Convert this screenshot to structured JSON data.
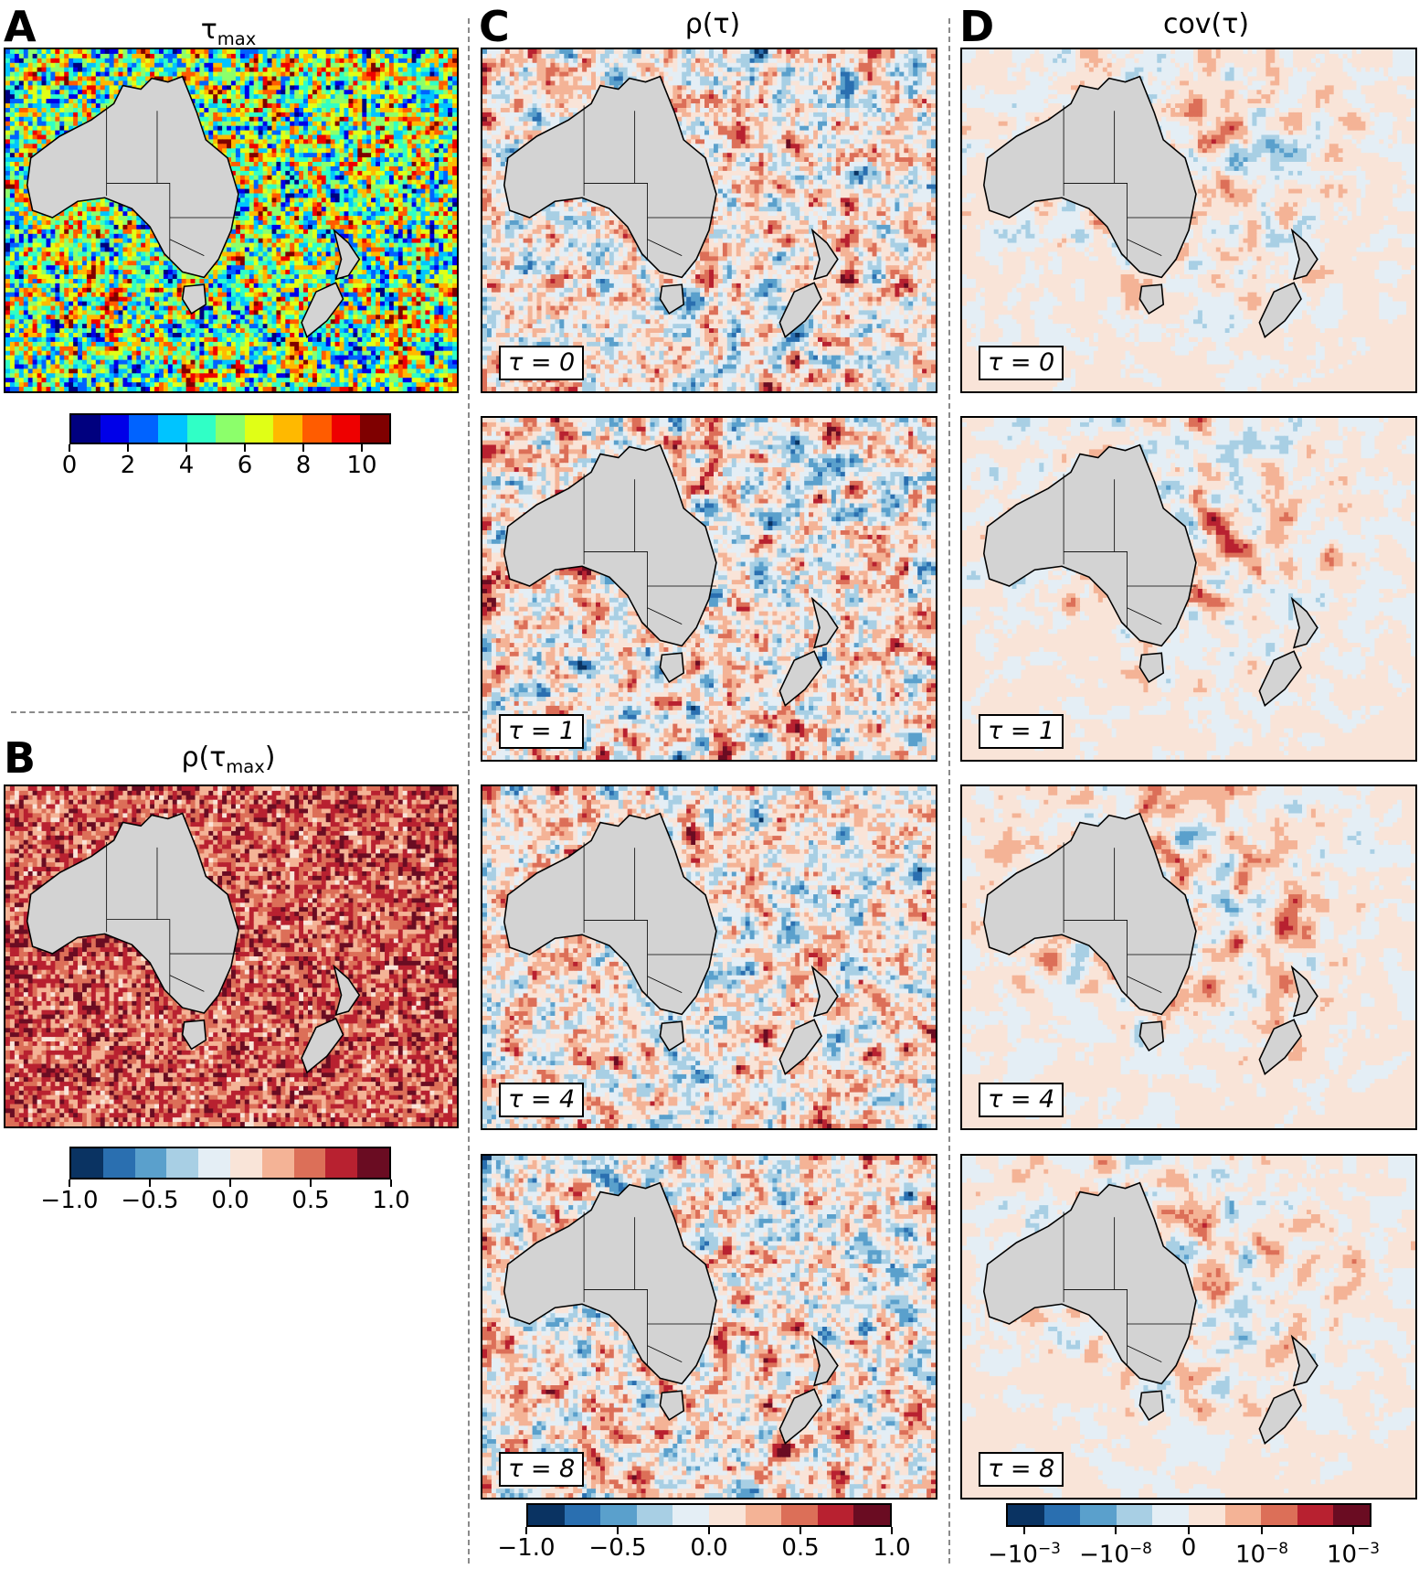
{
  "panels": {
    "A": {
      "letter": "A",
      "title_main": "τ",
      "title_sub": "max"
    },
    "B": {
      "letter": "B",
      "title_main": "ρ(τ",
      "title_sub": "max",
      "title_tail": ")"
    },
    "C": {
      "letter": "C",
      "title": "ρ(τ)"
    },
    "D": {
      "letter": "D",
      "title": "cov(τ)"
    }
  },
  "tau_rows": [
    "τ = 0",
    "τ = 1",
    "τ = 4",
    "τ = 8"
  ],
  "colorbars": {
    "tau_max": {
      "colors": [
        "#00007f",
        "#0000e8",
        "#0063ff",
        "#00c4ff",
        "#30ffc6",
        "#8cff6b",
        "#e0ff16",
        "#ffb900",
        "#ff5c00",
        "#ee0000",
        "#7f0000"
      ],
      "ticks": [
        "0",
        "2",
        "4",
        "6",
        "8",
        "10"
      ],
      "range": [
        0,
        11
      ]
    },
    "rho": {
      "colors": [
        "#0a3362",
        "#2a6fb0",
        "#5aa0cc",
        "#a8cfe4",
        "#e4eef5",
        "#f9e4d8",
        "#f4b396",
        "#dc6f58",
        "#b82130",
        "#6a0c22"
      ],
      "ticks": [
        "−1.0",
        "−0.5",
        "0.0",
        "0.5",
        "1.0"
      ],
      "range": [
        -1,
        1
      ]
    },
    "cov": {
      "colors": [
        "#0a3362",
        "#2a6fb0",
        "#5aa0cc",
        "#a8cfe4",
        "#e4eef5",
        "#f9e4d8",
        "#f4b396",
        "#dc6f58",
        "#b82130",
        "#6a0c22"
      ],
      "ticks": [
        {
          "base": "−10",
          "exp": "−3"
        },
        {
          "base": "−10",
          "exp": "−8"
        },
        {
          "base": "0",
          "exp": ""
        },
        {
          "base": "10",
          "exp": "−8"
        },
        {
          "base": "10",
          "exp": "−3"
        }
      ]
    }
  }
}
